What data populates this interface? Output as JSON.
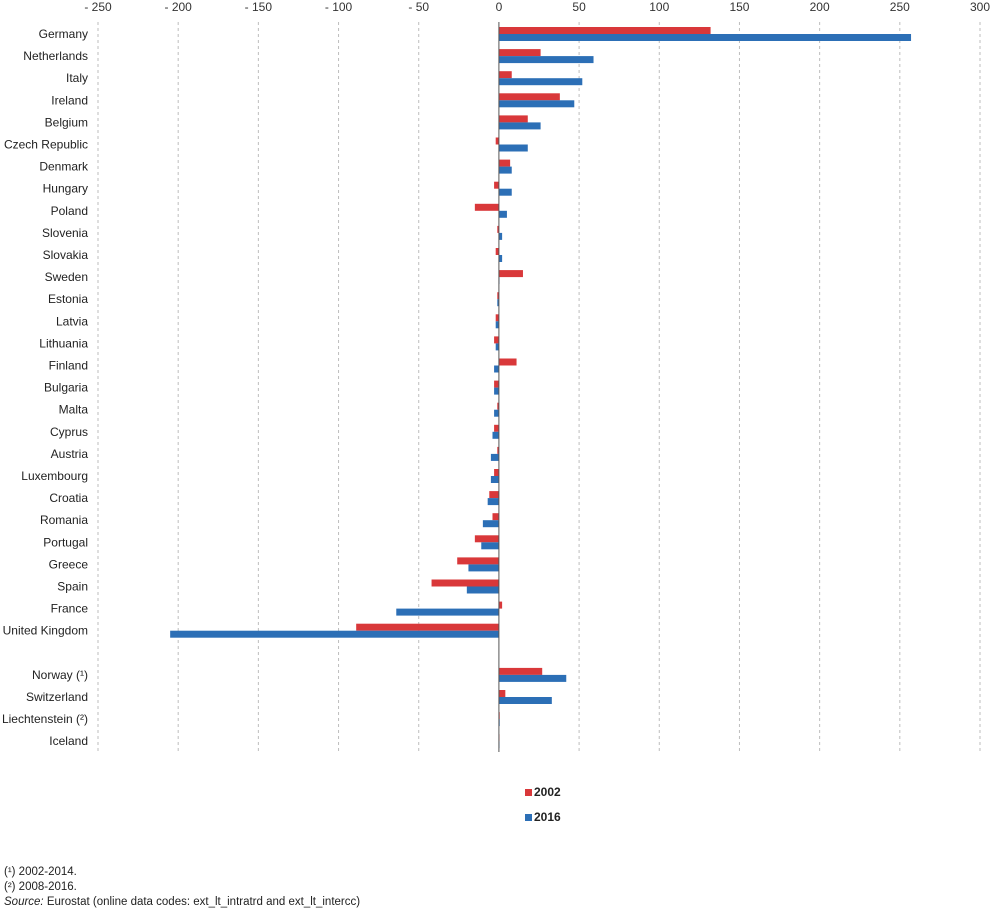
{
  "chart_data": {
    "type": "bar",
    "orientation": "horizontal",
    "categories": [
      "Germany",
      "Netherlands",
      "Italy",
      "Ireland",
      "Belgium",
      "Czech Republic",
      "Denmark",
      "Hungary",
      "Poland",
      "Slovenia",
      "Slovakia",
      "Sweden",
      "Estonia",
      "Latvia",
      "Lithuania",
      "Finland",
      "Bulgaria",
      "Malta",
      "Cyprus",
      "Austria",
      "Luxembourg",
      "Croatia",
      "Romania",
      "Portugal",
      "Greece",
      "Spain",
      "France",
      "United Kingdom",
      "",
      "Norway (¹)",
      "Switzerland",
      "Liechtenstein (²)",
      "Iceland"
    ],
    "series": [
      {
        "name": "2002",
        "color": "#d9383a",
        "values": [
          132,
          26,
          8,
          38,
          18,
          -2,
          7,
          -3,
          -15,
          -1,
          -2,
          15,
          -1,
          -2,
          -3,
          11,
          -3,
          -1,
          -3,
          -1,
          -3,
          -6,
          -4,
          -15,
          -26,
          -42,
          2,
          -89,
          null,
          27,
          4,
          0.5,
          0
        ]
      },
      {
        "name": "2016",
        "color": "#2c6fb6",
        "values": [
          257,
          59,
          52,
          47,
          26,
          18,
          8,
          8,
          5,
          2,
          2,
          0,
          -1,
          -2,
          -2,
          -3,
          -3,
          -3,
          -4,
          -5,
          -5,
          -7,
          -10,
          -11,
          -19,
          -20,
          -64,
          -205,
          null,
          42,
          33,
          0.5,
          0
        ]
      }
    ],
    "xlim": [
      -250,
      300
    ],
    "xticks": [
      -250,
      -200,
      -150,
      -100,
      -50,
      0,
      50,
      100,
      150,
      200,
      250,
      300
    ],
    "xtick_labels": [
      "- 250",
      "- 200",
      "- 150",
      "- 100",
      "- 50",
      "0",
      "50",
      "100",
      "150",
      "200",
      "250",
      "300"
    ],
    "grid": "vertical-dashed",
    "legend": {
      "position": "bottom-center",
      "entries": [
        "2002",
        "2016"
      ]
    }
  },
  "footnotes": {
    "note1": "(¹) 2002-2014.",
    "note2": "(²) 2008-2016.",
    "source_label": "Source:",
    "source_text": " Eurostat (online data codes: ext_lt_intratrd and ext_lt_intercc)"
  }
}
